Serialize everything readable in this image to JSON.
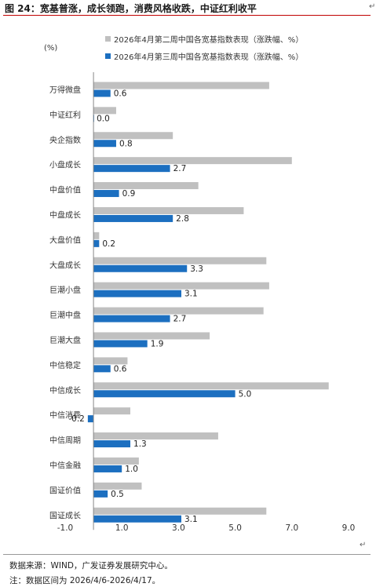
{
  "header": {
    "title": "图 24：宽基普涨，成长领跑，消费风格收跌，中证红利收平"
  },
  "legend": {
    "week2_label": "2026年4月第二周中国各宽基指数表现（涨跌幅、%）",
    "week3_label": "2026年4月第三周中国各宽基指数表现（涨跌幅、%）"
  },
  "unit_label": "(%)",
  "footer": {
    "source": "数据来源：WIND，广发证券发展研究中心。",
    "note": "注：数据区间为 2026/4/6-2026/4/17。"
  },
  "colors": {
    "week2": "#c0c0c0",
    "week3": "#1c6fc0",
    "title_rule": "#c00000"
  },
  "chart_data": {
    "type": "bar",
    "orientation": "horizontal",
    "categories": [
      "万得微盘",
      "中证红利",
      "央企指数",
      "小盘成长",
      "中盘价值",
      "中盘成长",
      "大盘价值",
      "大盘成长",
      "巨潮小盘",
      "巨潮中盘",
      "巨潮大盘",
      "中信稳定",
      "中信成长",
      "中信消费",
      "中信周期",
      "中信金融",
      "国证价值",
      "国证成长"
    ],
    "series": [
      {
        "name": "2026年4月第二周中国各宽基指数表现（涨跌幅、%）",
        "values": [
          6.2,
          0.8,
          2.8,
          7.0,
          3.7,
          5.3,
          0.2,
          6.1,
          6.2,
          6.0,
          4.1,
          1.2,
          8.3,
          1.3,
          4.4,
          1.6,
          1.7,
          6.1
        ]
      },
      {
        "name": "2026年4月第三周中国各宽基指数表现（涨跌幅、%）",
        "values": [
          0.6,
          0.0,
          0.8,
          2.7,
          0.9,
          2.8,
          0.2,
          3.3,
          3.1,
          2.7,
          1.9,
          0.6,
          5.0,
          -0.2,
          1.3,
          1.0,
          0.5,
          3.1
        ]
      }
    ],
    "data_labels": [
      "0.6",
      "0.0",
      "0.8",
      "2.7",
      "0.9",
      "2.8",
      "0.2",
      "3.3",
      "3.1",
      "2.7",
      "1.9",
      "0.6",
      "5.0",
      "-0.2",
      "1.3",
      "1.0",
      "0.5",
      "3.1"
    ],
    "x_ticks": [
      "-1.0",
      "1.0",
      "3.0",
      "5.0",
      "7.0",
      "9.0"
    ],
    "xlim": [
      -1.0,
      9.0
    ],
    "ylabel": "(%)",
    "legend_position": "top",
    "grid": false
  }
}
